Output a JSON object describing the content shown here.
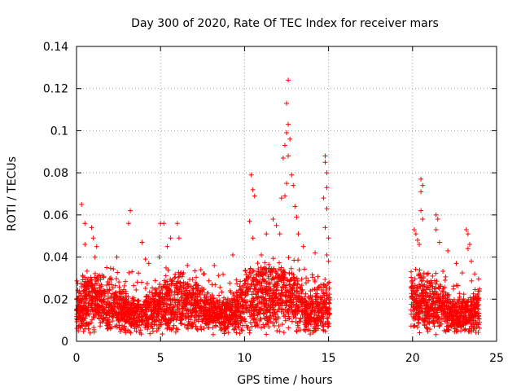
{
  "chart_data": {
    "type": "scatter",
    "title": "Day 300 of 2020, Rate Of TEC Index for receiver mars",
    "xlabel": "GPS time / hours",
    "ylabel": "ROTI / TECUs",
    "xlim": [
      0,
      25
    ],
    "ylim": [
      0,
      0.14
    ],
    "xticks": [
      0,
      5,
      10,
      15,
      20,
      25
    ],
    "yticks": [
      0,
      0.02,
      0.04,
      0.06,
      0.08,
      0.1,
      0.12,
      0.14
    ],
    "xtick_labels": [
      "0",
      "5",
      "10",
      "15",
      "20",
      "25"
    ],
    "ytick_labels": [
      "0",
      "0.02",
      "0.04",
      "0.06",
      "0.08",
      "0.1",
      "0.12",
      "0.14"
    ],
    "grid": true,
    "marker": "+",
    "color": "#ff0000",
    "data_gap_hours": [
      15.1,
      19.9
    ],
    "series": [
      {
        "points": [
          [
            0.3,
            0.065
          ],
          [
            0.5,
            0.056
          ],
          [
            0.5,
            0.046
          ],
          [
            0.9,
            0.054
          ],
          [
            1.0,
            0.049
          ],
          [
            1.2,
            0.045
          ],
          [
            1.1,
            0.04
          ],
          [
            1.8,
            0.035
          ],
          [
            2.4,
            0.04
          ],
          [
            3.2,
            0.062
          ],
          [
            3.1,
            0.056
          ],
          [
            3.3,
            0.033
          ],
          [
            3.9,
            0.047
          ],
          [
            4.1,
            0.039
          ],
          [
            4.3,
            0.037
          ],
          [
            5.0,
            0.056
          ],
          [
            5.2,
            0.056
          ],
          [
            5.4,
            0.045
          ],
          [
            5.6,
            0.049
          ],
          [
            6.0,
            0.056
          ],
          [
            6.1,
            0.049
          ],
          [
            6.6,
            0.036
          ],
          [
            7.4,
            0.034
          ],
          [
            8.2,
            0.036
          ],
          [
            9.3,
            0.041
          ],
          [
            10.4,
            0.079
          ],
          [
            10.5,
            0.072
          ],
          [
            10.6,
            0.069
          ],
          [
            10.3,
            0.057
          ],
          [
            10.5,
            0.049
          ],
          [
            11.0,
            0.041
          ],
          [
            11.3,
            0.051
          ],
          [
            11.7,
            0.058
          ],
          [
            11.9,
            0.055
          ],
          [
            12.1,
            0.051
          ],
          [
            12.2,
            0.068
          ],
          [
            12.4,
            0.069
          ],
          [
            12.5,
            0.075
          ],
          [
            12.3,
            0.087
          ],
          [
            12.4,
            0.093
          ],
          [
            12.5,
            0.099
          ],
          [
            12.6,
            0.103
          ],
          [
            12.7,
            0.096
          ],
          [
            12.6,
            0.088
          ],
          [
            12.5,
            0.113
          ],
          [
            12.6,
            0.124
          ],
          [
            12.8,
            0.079
          ],
          [
            12.9,
            0.074
          ],
          [
            13.0,
            0.064
          ],
          [
            13.1,
            0.059
          ],
          [
            13.2,
            0.051
          ],
          [
            13.5,
            0.045
          ],
          [
            14.2,
            0.042
          ],
          [
            14.8,
            0.088
          ],
          [
            14.8,
            0.085
          ],
          [
            14.9,
            0.08
          ],
          [
            14.9,
            0.073
          ],
          [
            14.7,
            0.068
          ],
          [
            14.9,
            0.063
          ],
          [
            14.8,
            0.054
          ],
          [
            15.0,
            0.049
          ],
          [
            14.9,
            0.041
          ],
          [
            15.0,
            0.038
          ],
          [
            20.1,
            0.053
          ],
          [
            20.2,
            0.051
          ],
          [
            20.3,
            0.048
          ],
          [
            20.4,
            0.046
          ],
          [
            20.5,
            0.077
          ],
          [
            20.6,
            0.074
          ],
          [
            20.5,
            0.071
          ],
          [
            20.5,
            0.062
          ],
          [
            20.6,
            0.058
          ],
          [
            21.4,
            0.06
          ],
          [
            21.5,
            0.058
          ],
          [
            21.4,
            0.053
          ],
          [
            21.6,
            0.047
          ],
          [
            22.1,
            0.043
          ],
          [
            22.6,
            0.037
          ],
          [
            23.2,
            0.053
          ],
          [
            23.3,
            0.051
          ],
          [
            23.4,
            0.046
          ],
          [
            23.3,
            0.044
          ],
          [
            23.5,
            0.038
          ],
          [
            23.7,
            0.032
          ]
        ]
      }
    ]
  }
}
